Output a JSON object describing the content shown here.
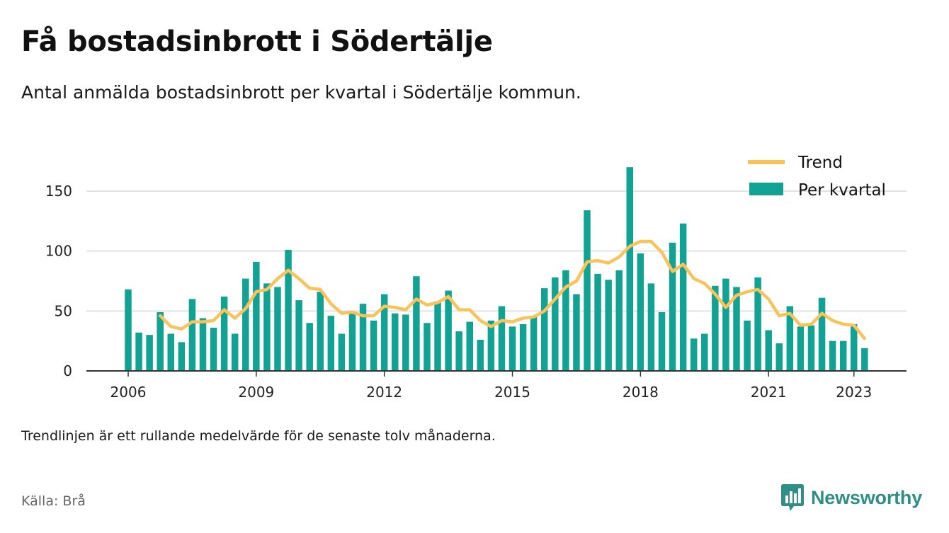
{
  "header": {
    "title": "Få bostadsinbrott i Södertälje",
    "subtitle": "Antal anmälda bostadsinbrott per kvartal i Södertälje kommun."
  },
  "footer": {
    "note": "Trendlinjen är ett rullande medelvärde för de senaste tolv månaderna.",
    "source": "Källa: Brå",
    "brand": "Newsworthy",
    "brand_icon": "bar-chart-icon"
  },
  "colors": {
    "bar": "#12a294",
    "trend": "#f8c35a",
    "grid": "#d9d9d9",
    "axis": "#333333",
    "brand": "#2f8f86"
  },
  "chart_data": {
    "type": "bar",
    "title": "",
    "xlabel": "",
    "ylabel": "",
    "ylim": [
      0,
      175
    ],
    "yticks": [
      0,
      50,
      100,
      150
    ],
    "xticks": [
      "2006",
      "2009",
      "2012",
      "2015",
      "2018",
      "2021",
      "2023"
    ],
    "grid": true,
    "legend_position": "top-right",
    "x_start": "2006-Q1",
    "categories": [
      "2006-Q1",
      "2006-Q2",
      "2006-Q3",
      "2006-Q4",
      "2007-Q1",
      "2007-Q2",
      "2007-Q3",
      "2007-Q4",
      "2008-Q1",
      "2008-Q2",
      "2008-Q3",
      "2008-Q4",
      "2009-Q1",
      "2009-Q2",
      "2009-Q3",
      "2009-Q4",
      "2010-Q1",
      "2010-Q2",
      "2010-Q3",
      "2010-Q4",
      "2011-Q1",
      "2011-Q2",
      "2011-Q3",
      "2011-Q4",
      "2012-Q1",
      "2012-Q2",
      "2012-Q3",
      "2012-Q4",
      "2013-Q1",
      "2013-Q2",
      "2013-Q3",
      "2013-Q4",
      "2014-Q1",
      "2014-Q2",
      "2014-Q3",
      "2014-Q4",
      "2015-Q1",
      "2015-Q2",
      "2015-Q3",
      "2015-Q4",
      "2016-Q1",
      "2016-Q2",
      "2016-Q3",
      "2016-Q4",
      "2017-Q1",
      "2017-Q2",
      "2017-Q3",
      "2017-Q4",
      "2018-Q1",
      "2018-Q2",
      "2018-Q3",
      "2018-Q4",
      "2019-Q1",
      "2019-Q2",
      "2019-Q3",
      "2019-Q4",
      "2020-Q1",
      "2020-Q2",
      "2020-Q3",
      "2020-Q4",
      "2021-Q1",
      "2021-Q2",
      "2021-Q3",
      "2021-Q4",
      "2022-Q1",
      "2022-Q2",
      "2022-Q3",
      "2022-Q4",
      "2023-Q1",
      "2023-Q2"
    ],
    "series": [
      {
        "name": "Per kvartal",
        "kind": "bar",
        "values": [
          68,
          32,
          30,
          49,
          31,
          24,
          60,
          44,
          36,
          62,
          31,
          77,
          91,
          73,
          70,
          101,
          59,
          40,
          66,
          46,
          31,
          48,
          56,
          42,
          64,
          48,
          47,
          79,
          40,
          58,
          67,
          33,
          41,
          26,
          42,
          54,
          37,
          39,
          46,
          69,
          78,
          84,
          64,
          134,
          81,
          76,
          84,
          170,
          98,
          73,
          49,
          107,
          123,
          27,
          31,
          71,
          77,
          70,
          42,
          78,
          34,
          23,
          54,
          37,
          38,
          61,
          25,
          25,
          39,
          19
        ]
      },
      {
        "name": "Trend",
        "kind": "line",
        "values": [
          null,
          null,
          null,
          46,
          37,
          35,
          41,
          41,
          42,
          51,
          44,
          52,
          66,
          68,
          77,
          84,
          77,
          69,
          68,
          56,
          48,
          49,
          46,
          46,
          54,
          53,
          51,
          60,
          55,
          57,
          62,
          51,
          51,
          42,
          37,
          42,
          41,
          44,
          45,
          50,
          60,
          70,
          75,
          91,
          92,
          90,
          95,
          104,
          108,
          108,
          99,
          83,
          89,
          77,
          73,
          64,
          53,
          63,
          66,
          68,
          60,
          46,
          48,
          38,
          39,
          48,
          42,
          39,
          38,
          27
        ]
      }
    ]
  }
}
